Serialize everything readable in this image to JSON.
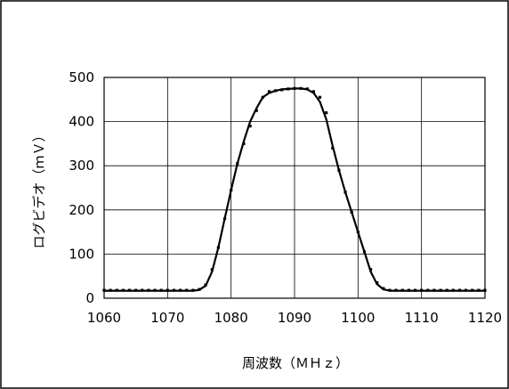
{
  "chart_data": {
    "type": "line",
    "xlabel": "周波数（ＭＨｚ）",
    "ylabel": "ログビデオ（ｍＶ）",
    "xlim": [
      1060,
      1120
    ],
    "ylim": [
      0,
      500
    ],
    "xticks": [
      "1060",
      "1070",
      "1080",
      "1090",
      "1100",
      "1110",
      "1120"
    ],
    "yticks": [
      "0",
      "100",
      "200",
      "300",
      "400",
      "500"
    ],
    "grid": true,
    "legend": "none",
    "series": [
      {
        "style": "markers",
        "x": [
          1060,
          1061,
          1062,
          1063,
          1064,
          1065,
          1066,
          1067,
          1068,
          1069,
          1070,
          1071,
          1072,
          1073,
          1074,
          1075,
          1076,
          1077,
          1078,
          1079,
          1080,
          1081,
          1082,
          1083,
          1084,
          1085,
          1086,
          1087,
          1088,
          1089,
          1090,
          1091,
          1092,
          1093,
          1094,
          1095,
          1096,
          1097,
          1098,
          1099,
          1100,
          1101,
          1102,
          1103,
          1104,
          1105,
          1106,
          1107,
          1108,
          1109,
          1110,
          1111,
          1112,
          1113,
          1114,
          1115,
          1116,
          1117,
          1118,
          1119,
          1120
        ],
        "y": [
          18,
          18,
          18,
          18,
          18,
          18,
          18,
          18,
          18,
          18,
          18,
          18,
          18,
          18,
          18,
          20,
          30,
          65,
          115,
          180,
          245,
          305,
          350,
          390,
          425,
          455,
          468,
          470,
          472,
          474,
          475,
          475,
          474,
          468,
          455,
          420,
          340,
          290,
          240,
          195,
          150,
          105,
          65,
          35,
          22,
          18,
          18,
          18,
          18,
          18,
          18,
          18,
          18,
          18,
          18,
          18,
          18,
          18,
          18,
          18,
          18
        ]
      },
      {
        "style": "line",
        "x": [
          1060,
          1074,
          1075,
          1076,
          1077,
          1078,
          1079,
          1080,
          1081,
          1082,
          1083,
          1084,
          1085,
          1086,
          1087,
          1088,
          1089,
          1090,
          1091,
          1092,
          1093,
          1094,
          1095,
          1096,
          1097,
          1098,
          1099,
          1100,
          1101,
          1102,
          1103,
          1104,
          1105,
          1106,
          1120
        ],
        "y": [
          17,
          17,
          19,
          28,
          60,
          115,
          180,
          245,
          305,
          355,
          400,
          430,
          455,
          465,
          470,
          473,
          474,
          475,
          475,
          473,
          465,
          445,
          405,
          345,
          290,
          240,
          195,
          150,
          105,
          60,
          32,
          20,
          17,
          17,
          17
        ]
      }
    ]
  }
}
